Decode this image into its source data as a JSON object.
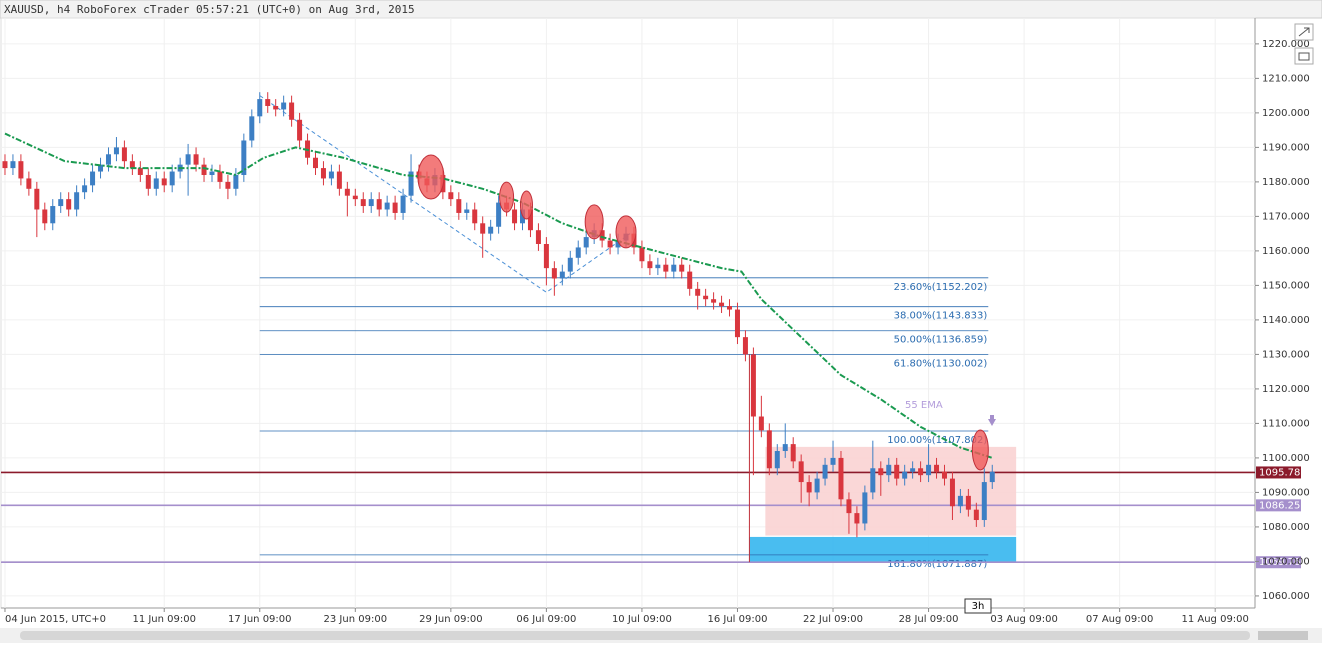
{
  "chart_data": {
    "type": "candlestick",
    "title": "XAUUSD, h4 RoboForex cTrader 05:57:21 (UTC+0) on Aug 3rd, 2015",
    "period_marker": "3h",
    "up_color": "#3d7fc4",
    "down_color": "#d9363e",
    "grid": true,
    "xlim": [
      -1,
      314
    ],
    "ylim": [
      1056.5,
      1227.5
    ],
    "xticks": [
      {
        "value": 0,
        "label": "04 Jun 2015, UTC+0"
      },
      {
        "value": 40,
        "label": "11 Jun 09:00"
      },
      {
        "value": 64,
        "label": "17 Jun 09:00"
      },
      {
        "value": 88,
        "label": "23 Jun 09:00"
      },
      {
        "value": 112,
        "label": "29 Jun 09:00"
      },
      {
        "value": 136,
        "label": "06 Jul 09:00"
      },
      {
        "value": 160,
        "label": "10 Jul 09:00"
      },
      {
        "value": 184,
        "label": "16 Jul 09:00"
      },
      {
        "value": 208,
        "label": "22 Jul 09:00"
      },
      {
        "value": 232,
        "label": "28 Jul 09:00"
      },
      {
        "value": 256,
        "label": "03 Aug 09:00"
      },
      {
        "value": 280,
        "label": "07 Aug 09:00"
      },
      {
        "value": 304,
        "label": "11 Aug 09:00"
      }
    ],
    "yticks": [
      {
        "value": 1060,
        "label": "1060.000"
      },
      {
        "value": 1070,
        "label": "1070.000"
      },
      {
        "value": 1080,
        "label": "1080.000"
      },
      {
        "value": 1090,
        "label": "1090.000"
      },
      {
        "value": 1100,
        "label": "1100.000"
      },
      {
        "value": 1110,
        "label": "1110.000"
      },
      {
        "value": 1120,
        "label": "1120.000"
      },
      {
        "value": 1130,
        "label": "1130.000"
      },
      {
        "value": 1140,
        "label": "1140.000"
      },
      {
        "value": 1150,
        "label": "1150.000"
      },
      {
        "value": 1160,
        "label": "1160.000"
      },
      {
        "value": 1170,
        "label": "1170.000"
      },
      {
        "value": 1180,
        "label": "1180.000"
      },
      {
        "value": 1190,
        "label": "1190.000"
      },
      {
        "value": 1200,
        "label": "1200.000"
      },
      {
        "value": 1210,
        "label": "1210.000"
      },
      {
        "value": 1220,
        "label": "1220.000"
      }
    ],
    "x": [
      0,
      2,
      4,
      6,
      8,
      10,
      12,
      14,
      16,
      18,
      20,
      22,
      24,
      26,
      28,
      30,
      32,
      34,
      36,
      38,
      40,
      42,
      44,
      46,
      48,
      50,
      52,
      54,
      56,
      58,
      60,
      62,
      64,
      66,
      68,
      70,
      72,
      74,
      76,
      78,
      80,
      82,
      84,
      86,
      88,
      90,
      92,
      94,
      96,
      98,
      100,
      102,
      104,
      106,
      108,
      110,
      112,
      114,
      116,
      118,
      120,
      122,
      124,
      126,
      128,
      130,
      132,
      134,
      136,
      138,
      140,
      142,
      144,
      146,
      148,
      150,
      152,
      154,
      156,
      158,
      160,
      162,
      164,
      166,
      168,
      170,
      172,
      174,
      176,
      178,
      180,
      182,
      184,
      186,
      188,
      190,
      192,
      194,
      196,
      198,
      200,
      202,
      204,
      206,
      208,
      210,
      212,
      214,
      216,
      218,
      220,
      222,
      224,
      226,
      228,
      230,
      232,
      234,
      236,
      238,
      240,
      242,
      244,
      246,
      248
    ],
    "ohlc": [
      [
        1186,
        1188,
        1182,
        1184
      ],
      [
        1184,
        1188,
        1182,
        1186
      ],
      [
        1186,
        1188,
        1179,
        1181
      ],
      [
        1181,
        1183,
        1176,
        1178
      ],
      [
        1178,
        1180,
        1164,
        1172
      ],
      [
        1172,
        1174,
        1166,
        1168
      ],
      [
        1168,
        1175,
        1166,
        1173
      ],
      [
        1173,
        1177,
        1171,
        1175
      ],
      [
        1175,
        1177,
        1170,
        1172
      ],
      [
        1172,
        1179,
        1170,
        1177
      ],
      [
        1177,
        1181,
        1175,
        1179
      ],
      [
        1179,
        1185,
        1177,
        1183
      ],
      [
        1183,
        1187,
        1181,
        1185
      ],
      [
        1185,
        1190,
        1183,
        1188
      ],
      [
        1188,
        1193,
        1186,
        1190
      ],
      [
        1190,
        1192,
        1184,
        1186
      ],
      [
        1186,
        1188,
        1182,
        1184
      ],
      [
        1184,
        1186,
        1180,
        1182
      ],
      [
        1182,
        1184,
        1176,
        1178
      ],
      [
        1178,
        1183,
        1176,
        1181
      ],
      [
        1181,
        1183,
        1177,
        1179
      ],
      [
        1179,
        1185,
        1177,
        1183
      ],
      [
        1183,
        1187,
        1181,
        1185
      ],
      [
        1185,
        1191,
        1176,
        1188
      ],
      [
        1188,
        1190,
        1183,
        1185
      ],
      [
        1185,
        1187,
        1180,
        1182
      ],
      [
        1182,
        1185,
        1180,
        1183
      ],
      [
        1183,
        1185,
        1178,
        1180
      ],
      [
        1180,
        1182,
        1175,
        1178
      ],
      [
        1178,
        1184,
        1176,
        1182
      ],
      [
        1182,
        1194,
        1180,
        1192
      ],
      [
        1192,
        1201,
        1190,
        1199
      ],
      [
        1199,
        1206,
        1197,
        1204
      ],
      [
        1204,
        1206,
        1200,
        1202
      ],
      [
        1202,
        1204,
        1199,
        1201
      ],
      [
        1201,
        1205,
        1199,
        1203
      ],
      [
        1203,
        1205,
        1196,
        1198
      ],
      [
        1198,
        1200,
        1190,
        1192
      ],
      [
        1192,
        1194,
        1185,
        1187
      ],
      [
        1187,
        1189,
        1182,
        1184
      ],
      [
        1184,
        1186,
        1179,
        1181
      ],
      [
        1181,
        1185,
        1179,
        1183
      ],
      [
        1183,
        1185,
        1176,
        1178
      ],
      [
        1178,
        1180,
        1170,
        1176
      ],
      [
        1176,
        1178,
        1173,
        1175
      ],
      [
        1175,
        1177,
        1171,
        1173
      ],
      [
        1173,
        1177,
        1171,
        1175
      ],
      [
        1175,
        1177,
        1170,
        1172
      ],
      [
        1172,
        1176,
        1170,
        1174
      ],
      [
        1174,
        1176,
        1169,
        1171
      ],
      [
        1171,
        1178,
        1169,
        1176
      ],
      [
        1176,
        1188,
        1174,
        1183
      ],
      [
        1183,
        1185,
        1179,
        1181
      ],
      [
        1181,
        1183,
        1177,
        1179
      ],
      [
        1179,
        1184,
        1177,
        1182
      ],
      [
        1182,
        1184,
        1175,
        1177
      ],
      [
        1177,
        1179,
        1173,
        1175
      ],
      [
        1175,
        1177,
        1169,
        1171
      ],
      [
        1171,
        1174,
        1169,
        1172
      ],
      [
        1172,
        1174,
        1166,
        1168
      ],
      [
        1168,
        1170,
        1158,
        1165
      ],
      [
        1165,
        1169,
        1163,
        1167
      ],
      [
        1167,
        1176,
        1165,
        1174
      ],
      [
        1174,
        1176,
        1170,
        1172
      ],
      [
        1172,
        1174,
        1166,
        1168
      ],
      [
        1168,
        1174,
        1166,
        1172
      ],
      [
        1172,
        1174,
        1164,
        1166
      ],
      [
        1166,
        1168,
        1160,
        1162
      ],
      [
        1162,
        1164,
        1150,
        1155
      ],
      [
        1155,
        1157,
        1147,
        1152
      ],
      [
        1152,
        1156,
        1150,
        1154
      ],
      [
        1154,
        1160,
        1152,
        1158
      ],
      [
        1158,
        1163,
        1156,
        1161
      ],
      [
        1161,
        1166,
        1159,
        1164
      ],
      [
        1164,
        1168,
        1162,
        1166
      ],
      [
        1166,
        1168,
        1161,
        1163
      ],
      [
        1163,
        1165,
        1159,
        1161
      ],
      [
        1161,
        1165,
        1159,
        1163
      ],
      [
        1163,
        1167,
        1161,
        1165
      ],
      [
        1165,
        1167,
        1159,
        1161
      ],
      [
        1161,
        1163,
        1155,
        1157
      ],
      [
        1157,
        1159,
        1153,
        1155
      ],
      [
        1155,
        1158,
        1153,
        1156
      ],
      [
        1156,
        1158,
        1152,
        1154
      ],
      [
        1154,
        1158,
        1152,
        1156
      ],
      [
        1156,
        1158,
        1152,
        1154
      ],
      [
        1154,
        1156,
        1147,
        1149
      ],
      [
        1149,
        1151,
        1143,
        1147
      ],
      [
        1147,
        1149,
        1144,
        1146
      ],
      [
        1146,
        1148,
        1143,
        1145
      ],
      [
        1145,
        1147,
        1142,
        1144
      ],
      [
        1144,
        1146,
        1141,
        1143
      ],
      [
        1143,
        1145,
        1133,
        1135
      ],
      [
        1135,
        1137,
        1128,
        1130
      ],
      [
        1130,
        1132,
        1095,
        1112
      ],
      [
        1112,
        1118,
        1106,
        1108
      ],
      [
        1108,
        1110,
        1095,
        1097
      ],
      [
        1097,
        1104,
        1095,
        1102
      ],
      [
        1102,
        1110,
        1100,
        1104
      ],
      [
        1104,
        1106,
        1097,
        1099
      ],
      [
        1099,
        1101,
        1087,
        1093
      ],
      [
        1093,
        1095,
        1086,
        1090
      ],
      [
        1090,
        1096,
        1088,
        1094
      ],
      [
        1094,
        1100,
        1092,
        1098
      ],
      [
        1098,
        1105,
        1096,
        1100
      ],
      [
        1100,
        1102,
        1086,
        1088
      ],
      [
        1088,
        1090,
        1078,
        1084
      ],
      [
        1084,
        1086,
        1077,
        1081
      ],
      [
        1081,
        1092,
        1079,
        1090
      ],
      [
        1090,
        1105,
        1088,
        1097
      ],
      [
        1097,
        1099,
        1089,
        1095
      ],
      [
        1095,
        1100,
        1093,
        1098
      ],
      [
        1098,
        1100,
        1092,
        1094
      ],
      [
        1094,
        1098,
        1092,
        1096
      ],
      [
        1096,
        1099,
        1094,
        1097
      ],
      [
        1097,
        1099,
        1093,
        1095
      ],
      [
        1095,
        1104,
        1093,
        1098
      ],
      [
        1098,
        1100,
        1094,
        1096
      ],
      [
        1096,
        1098,
        1092,
        1094
      ],
      [
        1094,
        1096,
        1082,
        1086
      ],
      [
        1086,
        1091,
        1084,
        1089
      ],
      [
        1089,
        1091,
        1083,
        1085
      ],
      [
        1085,
        1087,
        1080,
        1082
      ],
      [
        1082,
        1097,
        1080,
        1093
      ],
      [
        1093,
        1098,
        1091,
        1096
      ]
    ],
    "ema": {
      "name": "55 EMA",
      "color": "#1a9a50",
      "label_color": "#b39ddb",
      "x": [
        0,
        15,
        30,
        50,
        58,
        65,
        73,
        85,
        100,
        110,
        120,
        130,
        140,
        150,
        160,
        170,
        180,
        185,
        190,
        200,
        210,
        220,
        230,
        240,
        248
      ],
      "values": [
        1194,
        1186,
        1184,
        1184,
        1182,
        1187,
        1190,
        1187,
        1182,
        1181,
        1178,
        1174,
        1168,
        1164,
        1161,
        1158,
        1155,
        1154,
        1146,
        1135,
        1124,
        1117,
        1109,
        1103,
        1100
      ]
    },
    "fib_color": "#2b6cb0",
    "fib_x": [
      64,
      247
    ],
    "fib_levels": [
      {
        "label": "23.60%(1152.202)",
        "value": 1152.202
      },
      {
        "label": "38.00%(1143.833)",
        "value": 1143.833
      },
      {
        "label": "50.00%(1136.859)",
        "value": 1136.859
      },
      {
        "label": "61.80%(1130.002)",
        "value": 1130.002
      },
      {
        "label": "100.00%(1107.802)",
        "value": 1107.802
      },
      {
        "label": "161.80%(1071.887)",
        "value": 1071.887
      }
    ],
    "price_lines": [
      {
        "price": 1095.785,
        "color": "#8b1a2b"
      },
      {
        "price": {
          "value": 1086.25,
          "label": "1086.250"
        },
        "color": "#a58fcc"
      },
      {
        "price": 1069.767,
        "color": "#a58fcc"
      }
    ],
    "zones": [
      {
        "x": [
          191,
          254
        ],
        "y": [
          1077.5,
          1103.2
        ],
        "color": "#f9d3d3"
      },
      {
        "x": [
          187,
          254
        ],
        "y": [
          1069.8,
          1077.1
        ],
        "color": "#35b6ee"
      }
    ],
    "trend_lines": [
      {
        "color": "#4a8fd6",
        "x": [
          64,
          136,
          157
        ],
        "y": [
          1205,
          1148,
          1165
        ]
      },
      {
        "color": "#c0303a",
        "x": [
          187,
          187
        ],
        "y": [
          1130,
          1069.8
        ]
      }
    ],
    "circles": {
      "color": "#f05a5a",
      "x": [
        107,
        126,
        131,
        148,
        156,
        245
      ],
      "y": [
        1181.4,
        1175.6,
        1173.3,
        1168.4,
        1165.5,
        1102.3
      ]
    }
  }
}
